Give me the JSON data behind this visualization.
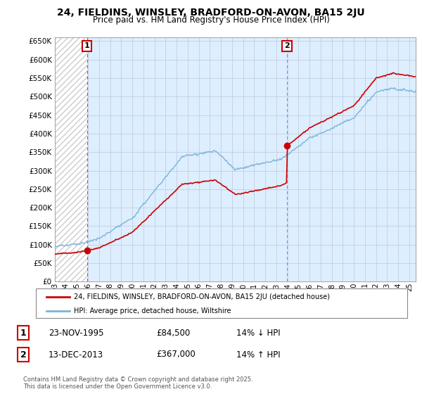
{
  "title": "24, FIELDINS, WINSLEY, BRADFORD-ON-AVON, BA15 2JU",
  "subtitle": "Price paid vs. HM Land Registry's House Price Index (HPI)",
  "legend_line1": "24, FIELDINS, WINSLEY, BRADFORD-ON-AVON, BA15 2JU (detached house)",
  "legend_line2": "HPI: Average price, detached house, Wiltshire",
  "sale1_label": "1",
  "sale1_date": "23-NOV-1995",
  "sale1_price": "£84,500",
  "sale1_hpi": "14% ↓ HPI",
  "sale1_year": 1995.9,
  "sale1_value": 84500,
  "sale2_label": "2",
  "sale2_date": "13-DEC-2013",
  "sale2_price": "£367,000",
  "sale2_hpi": "14% ↑ HPI",
  "sale2_year": 2013.95,
  "sale2_value": 367000,
  "hpi_color": "#7ab4d8",
  "price_color": "#cc0000",
  "ylim_min": 0,
  "ylim_max": 660000,
  "footer": "Contains HM Land Registry data © Crown copyright and database right 2025.\nThis data is licensed under the Open Government Licence v3.0.",
  "chart_bg": "#ddeeff",
  "hatch_color": "#cccccc",
  "grid_color": "#aaaacc"
}
